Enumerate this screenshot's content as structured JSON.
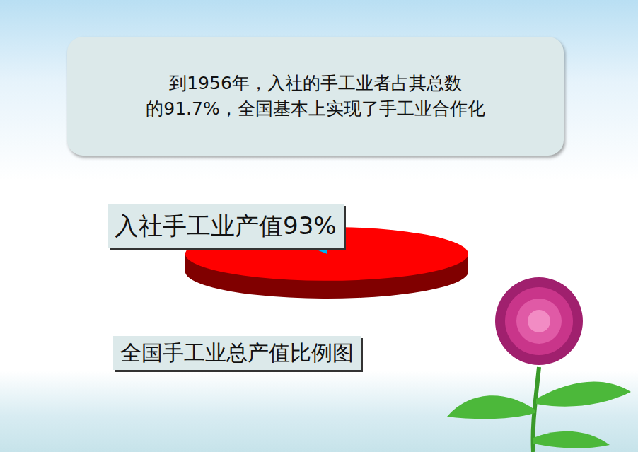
{
  "chart_data": {
    "type": "pie",
    "title": "全国手工业总产值比例图",
    "annotations": [
      "到1956年，入社的手工业者占其总数",
      "的91.7%，全国基本上实现了手工业合作化"
    ],
    "categories": [
      "入社手工业产值",
      null
    ],
    "values": [
      93,
      7
    ],
    "value_labels": [
      "入社手工业产值93%",
      null
    ],
    "data_labels": true,
    "colors": [
      "#ff0000",
      "#00b0f0"
    ]
  }
}
